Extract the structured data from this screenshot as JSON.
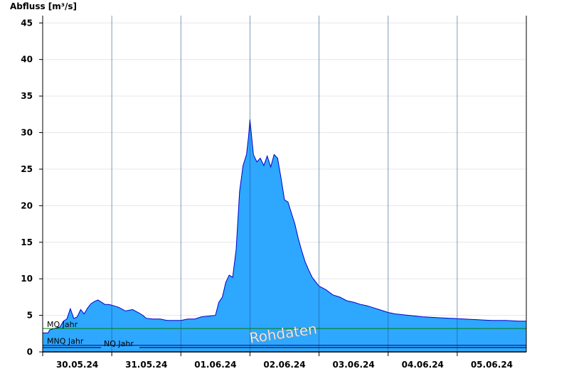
{
  "chart_data": {
    "type": "area",
    "ylabel": "Abfluss [m³/s]",
    "ylim": [
      0,
      46
    ],
    "yticks": [
      0,
      5,
      10,
      15,
      20,
      25,
      30,
      35,
      40,
      45
    ],
    "xlim_days": [
      29.5,
      36.5
    ],
    "xticks": [
      {
        "day": 30,
        "label": "30.05.24"
      },
      {
        "day": 31,
        "label": "31.05.24"
      },
      {
        "day": 32,
        "label": "01.06.24"
      },
      {
        "day": 33,
        "label": "02.06.24"
      },
      {
        "day": 34,
        "label": "03.06.24"
      },
      {
        "day": 35,
        "label": "04.06.24"
      },
      {
        "day": 36,
        "label": "05.06.24"
      }
    ],
    "day_boundaries": [
      29.5,
      30.5,
      31.5,
      32.5,
      33.5,
      34.5,
      35.5
    ],
    "grid": true,
    "fill_color": "#2ea7ff",
    "line_color": "#0000c8",
    "series": [
      {
        "values_day": [
          29.5,
          29.58,
          29.6,
          29.7,
          29.75,
          29.8,
          29.85,
          29.9,
          29.95,
          29.96,
          29.98,
          30.0,
          30.05,
          30.1,
          30.15,
          30.2,
          30.25,
          30.3,
          30.35,
          30.4,
          30.45,
          30.5,
          30.6,
          30.7,
          30.8,
          30.9,
          30.95,
          31.0,
          31.1,
          31.2,
          31.3,
          31.4,
          31.5,
          31.6,
          31.7,
          31.8,
          31.9,
          32.0,
          32.05,
          32.1,
          32.15,
          32.2,
          32.25,
          32.3,
          32.35,
          32.4,
          32.45,
          32.48,
          32.5,
          32.55,
          32.6,
          32.65,
          32.7,
          32.75,
          32.8,
          32.85,
          32.9,
          32.95,
          33.0,
          33.05,
          33.1,
          33.15,
          33.2,
          33.25,
          33.3,
          33.35,
          33.4,
          33.5,
          33.6,
          33.7,
          33.8,
          33.9,
          34.0,
          34.1,
          34.2,
          34.3,
          34.4,
          34.5,
          34.6,
          34.8,
          35.0,
          35.2,
          35.4,
          35.6,
          35.8,
          36.0,
          36.2,
          36.4,
          36.5
        ],
        "values_q": [
          2.6,
          2.6,
          3.0,
          3.3,
          3.4,
          4.2,
          4.5,
          5.9,
          4.6,
          4.6,
          4.7,
          4.8,
          5.8,
          5.2,
          6.0,
          6.6,
          6.9,
          7.1,
          6.8,
          6.5,
          6.5,
          6.4,
          6.1,
          5.6,
          5.8,
          5.3,
          5.0,
          4.6,
          4.5,
          4.5,
          4.3,
          4.3,
          4.3,
          4.5,
          4.5,
          4.8,
          4.9,
          5.0,
          6.8,
          7.5,
          9.5,
          10.5,
          10.2,
          14.0,
          22.0,
          25.5,
          27.0,
          29.5,
          31.8,
          27.0,
          26.0,
          26.5,
          25.5,
          26.8,
          25.3,
          27.0,
          26.5,
          23.8,
          20.8,
          20.5,
          19.0,
          17.5,
          15.5,
          13.8,
          12.3,
          11.2,
          10.2,
          9.0,
          8.5,
          7.8,
          7.5,
          7.0,
          6.8,
          6.5,
          6.3,
          6.0,
          5.7,
          5.4,
          5.2,
          5.0,
          4.8,
          4.7,
          4.6,
          4.5,
          4.4,
          4.3,
          4.3,
          4.2,
          4.2
        ]
      }
    ],
    "reference_lines": [
      {
        "label": "MQ Jahr",
        "value": 3.2,
        "color": "#008000"
      },
      {
        "label": "MNQ Jahr",
        "value": 0.9,
        "color": "#00008b"
      },
      {
        "label": "NQ Jahr",
        "value": 0.6,
        "color": "#000000"
      }
    ],
    "watermark": "Rohdaten"
  }
}
